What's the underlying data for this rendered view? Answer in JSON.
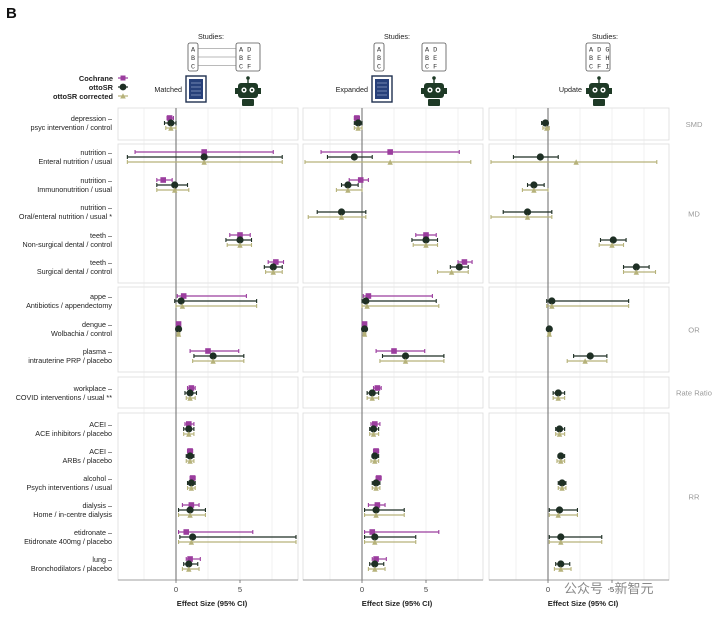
{
  "panel_label": "B",
  "legend": {
    "cochrane": "Cochrane",
    "ottosr": "ottoSR",
    "ottosr_corrected": "ottoSR corrected"
  },
  "colors": {
    "cochrane": "#9b3d9e",
    "ottosr": "#1e2f24",
    "ottosr_corrected": "#b6b27a",
    "zero_line": "#777777",
    "band": "#f3f3f3",
    "grid": "#e6e6e6"
  },
  "panels": [
    {
      "name": "Matched",
      "studies_label": "Studies:",
      "left": [
        "A",
        "B",
        "C"
      ],
      "right": [
        "A D",
        "B E",
        "C F"
      ],
      "icons": "document-robot-icons"
    },
    {
      "name": "Expanded",
      "studies_label": "Studies:",
      "left": [
        "A",
        "B",
        "C"
      ],
      "right": [
        "A D",
        "B E",
        "C F"
      ],
      "icons": "document-robot-icons"
    },
    {
      "name": "Update",
      "studies_label": "Studies:",
      "left": [],
      "right": [
        "A D G",
        "B E H",
        "C F I"
      ],
      "icons": "robot-icon"
    }
  ],
  "watermark": "公众号 · 新智元",
  "chart_data": {
    "type": "forest",
    "xlabel": "Effect Size (95% CI)",
    "xticks": [
      0,
      5
    ],
    "xlim": [
      -5,
      10
    ],
    "groups": [
      {
        "name": "SMD",
        "rows": [
          0
        ]
      },
      {
        "name": "MD",
        "rows": [
          1,
          2,
          3,
          4,
          5
        ]
      },
      {
        "name": "OR",
        "rows": [
          6,
          7,
          8
        ]
      },
      {
        "name": "Rate Ratio",
        "rows": [
          9
        ]
      },
      {
        "name": "RR",
        "rows": [
          10,
          11,
          12,
          13,
          14,
          15
        ]
      }
    ],
    "rows": [
      {
        "line1": "depression –",
        "line2": "psyc intervention / control"
      },
      {
        "line1": "nutrition –",
        "line2": "Enteral nutrition / usual"
      },
      {
        "line1": "nutrition –",
        "line2": "Immunonutrition / usual"
      },
      {
        "line1": "nutrition –",
        "line2": "Oral/enteral nutrition / usual *"
      },
      {
        "line1": "teeth –",
        "line2": "Non-surgical dental / control"
      },
      {
        "line1": "teeth –",
        "line2": "Surgical dental / control"
      },
      {
        "line1": "appe –",
        "line2": "Antibiotics / appendectomy"
      },
      {
        "line1": "dengue –",
        "line2": "Wolbachia / control"
      },
      {
        "line1": "plasma –",
        "line2": "intrauterine PRP / placebo"
      },
      {
        "line1": "workplace –",
        "line2": "COVID interventions / usual **"
      },
      {
        "line1": "ACEI –",
        "line2": "ACE inhibitors / placebo"
      },
      {
        "line1": "ACEI –",
        "line2": "ARBs / placebo"
      },
      {
        "line1": "alcohol –",
        "line2": "Psych interventions / usual"
      },
      {
        "line1": "dialysis –",
        "line2": "Home / in-centre dialysis"
      },
      {
        "line1": "etidronate –",
        "line2": "Etidronate 400mg / placebo"
      },
      {
        "line1": "lung –",
        "line2": "Bronchodilators / placebo"
      }
    ],
    "series": [
      {
        "name": "Cochrane",
        "panels": [
          [
            [
              -0.5,
              -0.7,
              -0.2
            ],
            [
              2.2,
              -3.2,
              7.6
            ],
            [
              -1.0,
              -1.5,
              -0.3
            ],
            null,
            [
              5.0,
              4.2,
              5.8
            ],
            [
              7.8,
              7.2,
              8.4
            ],
            [
              0.6,
              0.1,
              5.5
            ],
            [
              0.2,
              0.2,
              0.2
            ],
            [
              2.5,
              1.1,
              4.9
            ],
            [
              1.2,
              0.9,
              1.5
            ],
            [
              1.0,
              0.7,
              1.4
            ],
            [
              1.1,
              0.9,
              1.3
            ],
            [
              1.3,
              1.1,
              1.5
            ],
            [
              1.2,
              0.5,
              1.8
            ],
            [
              0.8,
              0.2,
              6.0
            ],
            [
              1.1,
              0.8,
              1.9
            ]
          ],
          [
            [
              -0.4,
              -0.6,
              -0.2
            ],
            [
              2.2,
              -3.2,
              7.6
            ],
            [
              -0.1,
              -1.0,
              0.5
            ],
            null,
            [
              5.0,
              4.2,
              5.8
            ],
            [
              8.0,
              7.5,
              8.6
            ],
            [
              0.5,
              0.1,
              5.5
            ],
            [
              0.2,
              0.2,
              0.2
            ],
            [
              2.5,
              1.1,
              4.9
            ],
            [
              1.2,
              0.9,
              1.5
            ],
            [
              1.0,
              0.7,
              1.4
            ],
            [
              1.1,
              0.9,
              1.3
            ],
            [
              1.3,
              1.1,
              1.5
            ],
            [
              1.2,
              0.5,
              1.8
            ],
            [
              0.8,
              0.2,
              6.0
            ],
            [
              1.1,
              0.8,
              1.9
            ]
          ],
          [
            null,
            null,
            null,
            null,
            null,
            null,
            null,
            null,
            null,
            null,
            null,
            null,
            null,
            null,
            null,
            null
          ]
        ]
      },
      {
        "name": "ottoSR",
        "panels": [
          [
            [
              -0.4,
              -0.9,
              0.0
            ],
            [
              2.2,
              -3.8,
              8.3
            ],
            [
              -0.1,
              -1.5,
              0.9
            ],
            null,
            [
              5.0,
              3.9,
              5.9
            ],
            [
              7.6,
              6.9,
              8.3
            ],
            [
              0.4,
              -0.1,
              6.3
            ],
            [
              0.2,
              0.1,
              0.3
            ],
            [
              2.9,
              1.4,
              5.3
            ],
            [
              1.1,
              0.7,
              1.6
            ],
            [
              1.0,
              0.6,
              1.4
            ],
            [
              1.1,
              0.8,
              1.4
            ],
            [
              1.2,
              0.9,
              1.5
            ],
            [
              1.1,
              0.2,
              2.3
            ],
            [
              1.3,
              0.3,
              9.4
            ],
            [
              1.0,
              0.6,
              1.7
            ]
          ],
          [
            [
              -0.3,
              -0.6,
              0.0
            ],
            [
              -0.6,
              -2.7,
              0.8
            ],
            [
              -1.1,
              -1.6,
              -0.3
            ],
            [
              -1.6,
              -3.5,
              0.3
            ],
            [
              5.0,
              3.9,
              5.9
            ],
            [
              7.6,
              6.9,
              8.3
            ],
            [
              0.3,
              0.0,
              5.8
            ],
            [
              0.2,
              0.1,
              0.3
            ],
            [
              3.4,
              1.6,
              6.4
            ],
            [
              0.8,
              0.4,
              1.3
            ],
            [
              0.9,
              0.6,
              1.3
            ],
            [
              1.0,
              0.8,
              1.3
            ],
            [
              1.1,
              0.8,
              1.4
            ],
            [
              1.1,
              0.2,
              3.3
            ],
            [
              1.0,
              0.2,
              4.2
            ],
            [
              1.0,
              0.6,
              1.7
            ]
          ],
          [
            [
              -0.2,
              -0.5,
              0.0
            ],
            [
              -0.6,
              -2.7,
              0.8
            ],
            [
              -1.1,
              -1.6,
              -0.3
            ],
            [
              -1.6,
              -3.5,
              0.3
            ],
            [
              5.1,
              4.1,
              6.1
            ],
            [
              6.9,
              5.9,
              7.9
            ],
            [
              0.3,
              -0.1,
              6.3
            ],
            [
              0.1,
              0.0,
              0.2
            ],
            [
              3.3,
              2.0,
              4.6
            ],
            [
              0.8,
              0.4,
              1.3
            ],
            [
              0.9,
              0.6,
              1.3
            ],
            [
              1.0,
              0.8,
              1.3
            ],
            [
              1.1,
              0.8,
              1.4
            ],
            [
              0.9,
              0.1,
              2.3
            ],
            [
              1.0,
              0.1,
              4.2
            ],
            [
              1.0,
              0.6,
              1.7
            ]
          ]
        ]
      },
      {
        "name": "ottoSR corrected",
        "panels": [
          [
            [
              -0.4,
              -0.8,
              0.0
            ],
            [
              2.2,
              -3.8,
              8.3
            ],
            [
              -0.1,
              -1.5,
              1.0
            ],
            null,
            [
              5.0,
              4.0,
              5.9
            ],
            [
              7.6,
              7.0,
              8.3
            ],
            [
              0.5,
              0.0,
              6.3
            ],
            [
              0.2,
              0.1,
              0.3
            ],
            [
              2.9,
              1.3,
              5.3
            ],
            [
              1.1,
              0.8,
              1.5
            ],
            [
              1.0,
              0.6,
              1.4
            ],
            [
              1.1,
              0.8,
              1.4
            ],
            [
              1.2,
              0.9,
              1.5
            ],
            [
              1.1,
              0.2,
              2.3
            ],
            [
              1.2,
              0.2,
              9.4
            ],
            [
              1.0,
              0.5,
              1.8
            ]
          ],
          [
            [
              -0.3,
              -0.6,
              0.0
            ],
            [
              2.2,
              -4.5,
              8.5
            ],
            [
              -1.1,
              -2.0,
              0.0
            ],
            [
              -1.6,
              -4.2,
              0.3
            ],
            [
              5.0,
              4.0,
              5.9
            ],
            [
              7.0,
              5.9,
              8.3
            ],
            [
              0.4,
              0.0,
              6.0
            ],
            [
              0.2,
              0.1,
              0.3
            ],
            [
              3.4,
              1.4,
              6.4
            ],
            [
              0.8,
              0.4,
              1.3
            ],
            [
              0.9,
              0.6,
              1.3
            ],
            [
              1.0,
              0.7,
              1.3
            ],
            [
              1.1,
              0.8,
              1.4
            ],
            [
              1.1,
              0.2,
              3.3
            ],
            [
              1.0,
              0.2,
              4.2
            ],
            [
              1.0,
              0.5,
              1.8
            ]
          ],
          [
            [
              -0.1,
              -0.4,
              0.1
            ],
            [
              2.2,
              -4.5,
              8.5
            ],
            [
              -1.1,
              -2.0,
              0.0
            ],
            [
              -1.6,
              -4.5,
              0.3
            ],
            [
              5.0,
              4.0,
              5.9
            ],
            [
              6.9,
              5.9,
              8.4
            ],
            [
              0.3,
              -0.1,
              6.3
            ],
            [
              0.1,
              0.0,
              0.2
            ],
            [
              2.9,
              1.5,
              4.6
            ],
            [
              0.8,
              0.4,
              1.3
            ],
            [
              0.9,
              0.6,
              1.3
            ],
            [
              1.0,
              0.7,
              1.3
            ],
            [
              1.1,
              0.8,
              1.4
            ],
            [
              0.8,
              0.1,
              2.3
            ],
            [
              1.0,
              0.1,
              4.2
            ],
            [
              1.0,
              0.5,
              1.8
            ]
          ]
        ]
      }
    ]
  }
}
